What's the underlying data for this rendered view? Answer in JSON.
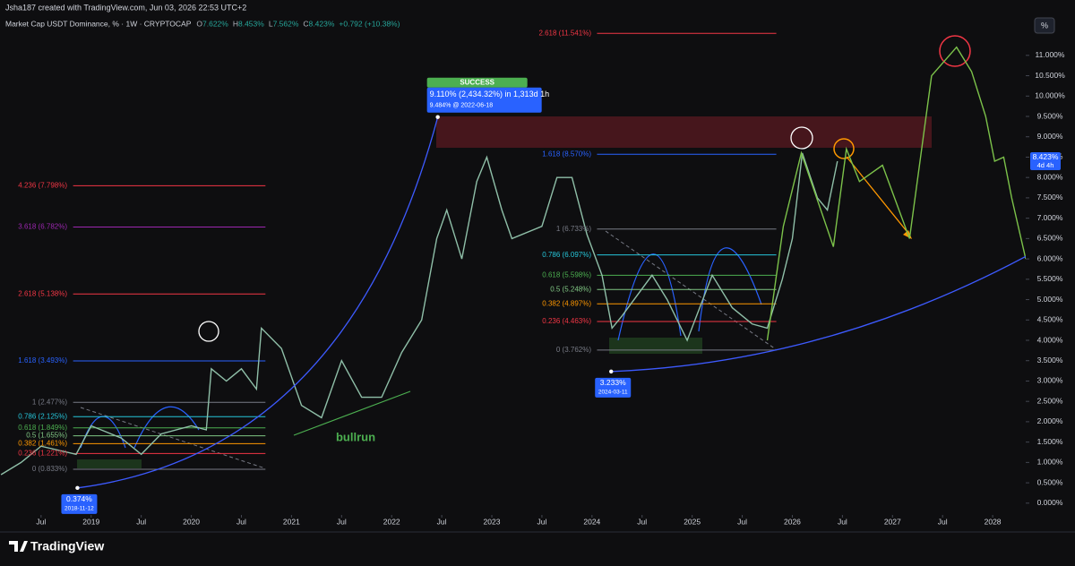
{
  "header": {
    "credit": "Jsha187 created with TradingView.com, Jun 03, 2026 22:53 UTC+2",
    "symbol": "Market Cap USDT Dominance, % · 1W · CRYPTOCAP",
    "ohlc": [
      [
        "O",
        "7.622%"
      ],
      [
        "H",
        "8.453%"
      ],
      [
        "L",
        "7.562%"
      ],
      [
        "C",
        "8.423%"
      ]
    ],
    "change": "+0.792 (+10.38%)"
  },
  "footer": {
    "brand": "TradingView"
  },
  "chart_data": {
    "type": "line",
    "axis_mode": "%",
    "xlim": [
      2018.09,
      2028.33
    ],
    "ylim": [
      -0.29,
      11.7
    ],
    "xticks": [
      {
        "value": 2018.5,
        "label": "Jul"
      },
      2019,
      {
        "value": 2019.5,
        "label": "Jul"
      },
      2020,
      {
        "value": 2020.5,
        "label": "Jul"
      },
      2021,
      {
        "value": 2021.5,
        "label": "Jul"
      },
      2022,
      {
        "value": 2022.5,
        "label": "Jul"
      },
      2023,
      {
        "value": 2023.5,
        "label": "Jul"
      },
      2024,
      {
        "value": 2024.5,
        "label": "Jul"
      },
      2025,
      {
        "value": 2025.5,
        "label": "Jul"
      },
      2026,
      {
        "value": 2026.5,
        "label": "Jul"
      },
      2027,
      {
        "value": 2027.5,
        "label": "Jul"
      },
      2028
    ],
    "yticks": [
      {
        "value": 0,
        "label": "0.000%"
      },
      {
        "value": 0.5,
        "label": "0.500%"
      },
      {
        "value": 1,
        "label": "1.000%"
      },
      {
        "value": 1.5,
        "label": "1.500%"
      },
      {
        "value": 2,
        "label": "2.000%"
      },
      {
        "value": 2.5,
        "label": "2.500%"
      },
      {
        "value": 3,
        "label": "3.000%"
      },
      {
        "value": 3.5,
        "label": "3.500%"
      },
      {
        "value": 4,
        "label": "4.000%"
      },
      {
        "value": 4.5,
        "label": "4.500%"
      },
      {
        "value": 5,
        "label": "5.000%"
      },
      {
        "value": 5.5,
        "label": "5.500%"
      },
      {
        "value": 6,
        "label": "6.000%"
      },
      {
        "value": 6.5,
        "label": "6.500%"
      },
      {
        "value": 7,
        "label": "7.000%"
      },
      {
        "value": 7.5,
        "label": "7.500%"
      },
      {
        "value": 8,
        "label": "8.000%"
      },
      {
        "value": 8.5,
        "label": "8.500%"
      },
      {
        "value": 9,
        "label": "9.000%"
      },
      {
        "value": 9.5,
        "label": "9.500%"
      },
      {
        "value": 10,
        "label": "10.000%"
      },
      {
        "value": 10.5,
        "label": "10.500%"
      },
      {
        "value": 11,
        "label": "11.000%"
      }
    ],
    "series": [
      {
        "color": "#8fbfa8",
        "x": [
          2018.1,
          2018.3,
          2018.5,
          2018.85,
          2019.0,
          2019.3,
          2019.5,
          2019.7,
          2020.0,
          2020.15,
          2020.2,
          2020.35,
          2020.5,
          2020.65,
          2020.7,
          2020.9,
          2021.1,
          2021.3,
          2021.5,
          2021.7,
          2021.9,
          2022.1,
          2022.3,
          2022.45,
          2022.55,
          2022.7,
          2022.85,
          2022.95,
          2023.1,
          2023.2,
          2023.5,
          2023.65,
          2023.8,
          2023.95,
          2024.1,
          2024.2,
          2024.3,
          2024.6,
          2024.75,
          2024.95,
          2025.2,
          2025.4,
          2025.6,
          2025.75,
          2025.9,
          2026.0,
          2026.1,
          2026.25,
          2026.35,
          2026.45
        ],
        "values": [
          0.7,
          1.0,
          1.4,
          1.2,
          1.9,
          1.6,
          1.2,
          1.7,
          1.9,
          1.8,
          3.3,
          3.0,
          3.3,
          2.8,
          4.3,
          3.8,
          2.4,
          2.1,
          3.5,
          2.6,
          2.6,
          3.7,
          4.5,
          6.5,
          7.2,
          6.0,
          7.9,
          8.5,
          7.2,
          6.5,
          6.8,
          8.0,
          8.0,
          6.6,
          5.6,
          4.3,
          4.6,
          5.6,
          5.0,
          4.0,
          5.6,
          4.8,
          4.4,
          4.3,
          5.5,
          6.5,
          8.6,
          7.5,
          7.2,
          8.4
        ]
      },
      {
        "color": "#7cc24a",
        "x": [
          2025.75,
          2025.91,
          2026.09,
          2026.41,
          2026.54,
          2026.67,
          2026.9,
          2027.17,
          2027.39,
          2027.64,
          2027.79,
          2027.93,
          2028.02,
          2028.11,
          2028.19,
          2028.33
        ],
        "values": [
          4.0,
          6.8,
          8.6,
          6.3,
          8.7,
          7.9,
          8.3,
          6.5,
          10.5,
          11.2,
          10.6,
          9.5,
          8.4,
          8.5,
          7.5,
          6.0
        ]
      }
    ],
    "last_price": {
      "value": 8.423,
      "label": "8.423%",
      "countdown": "4d 4h"
    },
    "fib_left": [
      {
        "label": "4.236 (7.798%)",
        "value": 7.798,
        "color": "#f23645"
      },
      {
        "label": "3.618 (6.782%)",
        "value": 6.782,
        "color": "#9c27b0"
      },
      {
        "label": "2.618 (5.138%)",
        "value": 5.138,
        "color": "#f23645"
      },
      {
        "label": "1.618 (3.493%)",
        "value": 3.493,
        "color": "#2962ff"
      },
      {
        "label": "1 (2.477%)",
        "value": 2.477,
        "color": "#787b86"
      },
      {
        "label": "0.786 (2.125%)",
        "value": 2.125,
        "color": "#26c6da"
      },
      {
        "label": "0.618 (1.849%)",
        "value": 1.849,
        "color": "#4caf50"
      },
      {
        "label": "0.5 (1.655%)",
        "value": 1.655,
        "color": "#81c784"
      },
      {
        "label": "0.382 (1.461%)",
        "value": 1.461,
        "color": "#ff9800"
      },
      {
        "label": "0.236 (1.221%)",
        "value": 1.221,
        "color": "#f23645"
      },
      {
        "label": "0 (0.833%)",
        "value": 0.833,
        "color": "#787b86"
      }
    ],
    "fib_right": [
      {
        "label": "2.618 (11.541%)",
        "value": 11.541,
        "color": "#f23645"
      },
      {
        "label": "1.618 (8.570%)",
        "value": 8.57,
        "color": "#2962ff"
      },
      {
        "label": "1 (6.733%)",
        "value": 6.733,
        "color": "#787b86"
      },
      {
        "label": "0.786 (6.097%)",
        "value": 6.097,
        "color": "#26c6da"
      },
      {
        "label": "0.618 (5.598%)",
        "value": 5.598,
        "color": "#4caf50"
      },
      {
        "label": "0.5 (5.248%)",
        "value": 5.248,
        "color": "#81c784"
      },
      {
        "label": "0.382 (4.897%)",
        "value": 4.897,
        "color": "#ff9800"
      },
      {
        "label": "0.236 (4.463%)",
        "value": 4.463,
        "color": "#f23645"
      },
      {
        "label": "0 (3.762%)",
        "value": 3.762,
        "color": "#787b86"
      }
    ],
    "markers": [
      {
        "value": 0.374,
        "label": "0.374%",
        "date": "2018-11-12"
      },
      {
        "value": 3.233,
        "label": "3.233%",
        "date": "2024-03-11"
      }
    ],
    "peak": {
      "value": 9.484,
      "date": "2022-06-18",
      "status": "SUCCESS",
      "move": "9.110% (2,434.32%) in 1,313d 1h",
      "label": "9.484% @ 2022-06-18"
    },
    "annotation": "bullrun"
  }
}
